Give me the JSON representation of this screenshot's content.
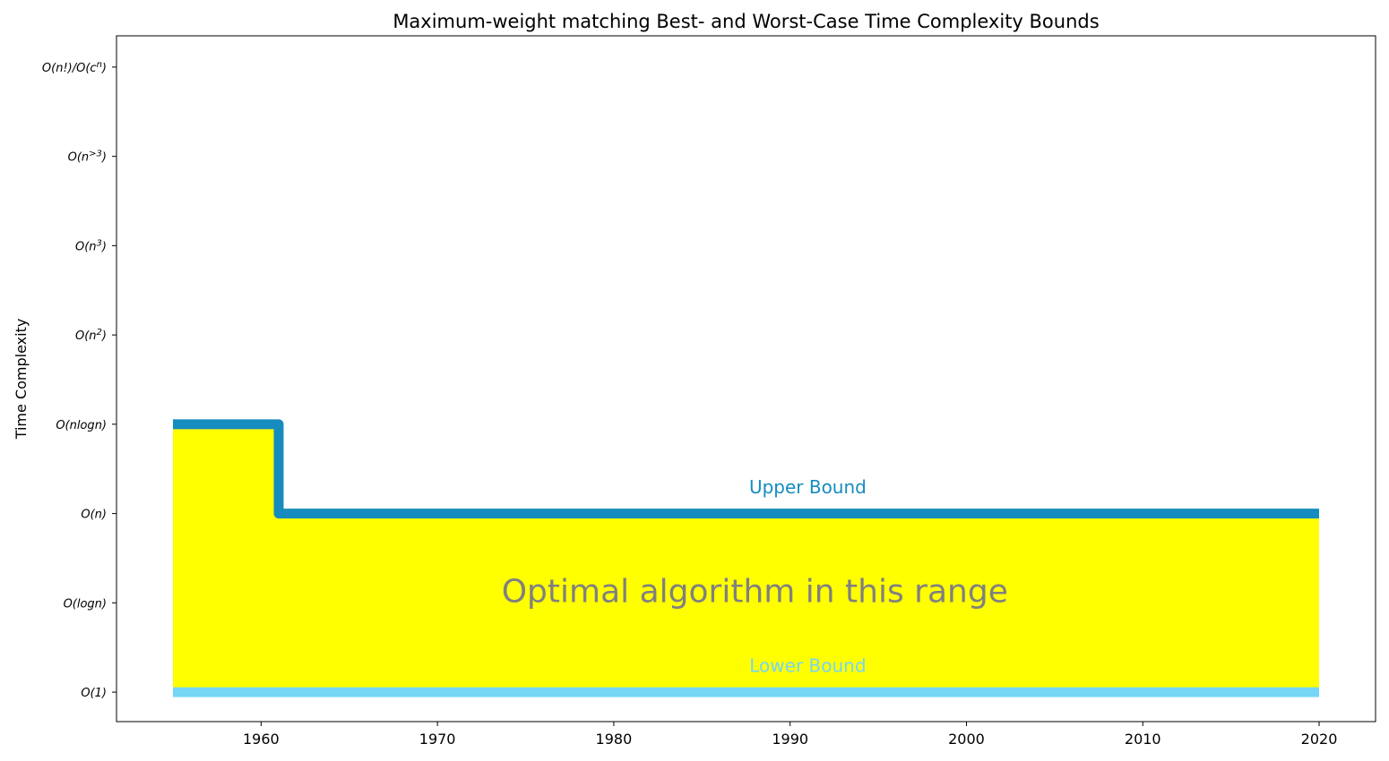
{
  "chart_data": {
    "type": "area",
    "title": "Maximum-weight matching Best- and Worst-Case Time Complexity Bounds",
    "xlabel": "",
    "ylabel": "Time Complexity",
    "xlim": [
      1951.8,
      2023.2
    ],
    "ylim": [
      -0.33,
      7.35
    ],
    "x_ticks": [
      1960,
      1970,
      1980,
      1990,
      2000,
      2010,
      2020
    ],
    "y_ticks": [
      {
        "value": 0,
        "label": "O(1)"
      },
      {
        "value": 1,
        "label": "O(logn)"
      },
      {
        "value": 2,
        "label": "O(n)"
      },
      {
        "value": 3,
        "label": "O(nlogn)"
      },
      {
        "value": 4,
        "label": "O(n^2)"
      },
      {
        "value": 5,
        "label": "O(n^3)"
      },
      {
        "value": 6,
        "label": "O(n^>3)"
      },
      {
        "value": 7,
        "label": "O(n!)/O(c^n)"
      }
    ],
    "grid": false,
    "series": [
      {
        "name": "Upper Bound",
        "step": "post",
        "color": "#168cbe",
        "points": [
          [
            1955,
            3
          ],
          [
            1961,
            2
          ],
          [
            2020,
            2
          ]
        ]
      },
      {
        "name": "Lower Bound",
        "step": "post",
        "color": "#76d6f5",
        "points": [
          [
            1955,
            0
          ],
          [
            2020,
            0
          ]
        ]
      }
    ],
    "fill_between": {
      "color": "#ffff00",
      "between": [
        "Lower Bound",
        "Upper Bound"
      ]
    },
    "annotations": [
      {
        "text": "Upper Bound",
        "x": 1991,
        "y": 2.28,
        "color": "#168cbe"
      },
      {
        "text": "Lower Bound",
        "x": 1991,
        "y": 0.28,
        "color": "#76d6f5"
      },
      {
        "text": "Optimal algorithm in this range",
        "x": 1988,
        "y": 1.11,
        "color": "#808080"
      }
    ]
  }
}
